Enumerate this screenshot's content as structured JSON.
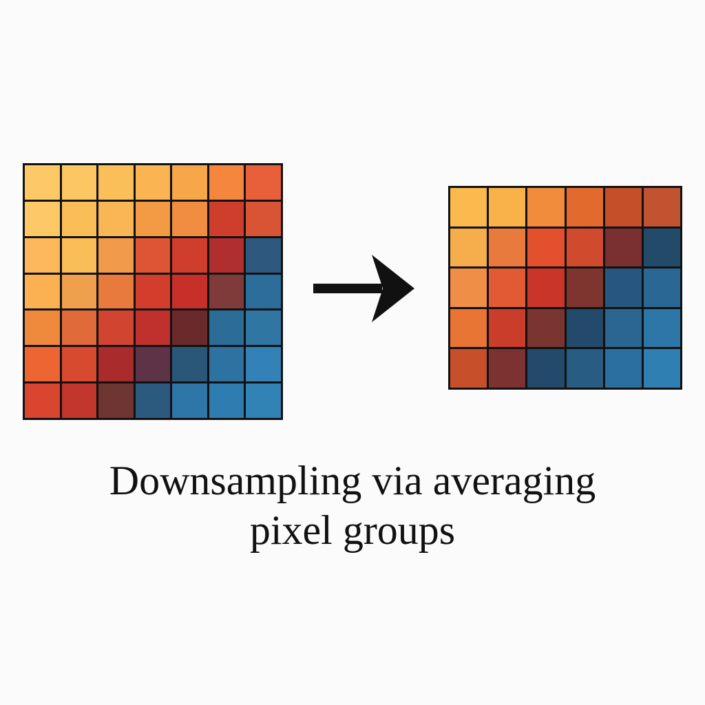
{
  "caption": {
    "line1": "Downsampling via averaging",
    "line2": "pixel groups"
  },
  "arrow_icon": "right-arrow-icon",
  "source_grid": {
    "rows": 7,
    "cols": 7,
    "colors": [
      [
        "#fdc866",
        "#fcc662",
        "#fbbf5a",
        "#fab452",
        "#f7a64a",
        "#f4863d",
        "#e8603a"
      ],
      [
        "#fdc966",
        "#fbbd58",
        "#f9b654",
        "#f39a45",
        "#f08d40",
        "#cf3e2c",
        "#d85434"
      ],
      [
        "#fcb85a",
        "#fbbd58",
        "#f19a4c",
        "#dd5532",
        "#d13d2c",
        "#b02f2e",
        "#2e587d"
      ],
      [
        "#fbb052",
        "#eea04c",
        "#e87a3e",
        "#d33e2c",
        "#c63029",
        "#7f3a3a",
        "#2d6d99"
      ],
      [
        "#ef8a3d",
        "#e06a3a",
        "#d1442f",
        "#c0312d",
        "#6a2a2c",
        "#2c6d98",
        "#2f76a3"
      ],
      [
        "#ed6532",
        "#d84a30",
        "#a92b2b",
        "#5e3347",
        "#2a5678",
        "#2d72a0",
        "#3282b7"
      ],
      [
        "#d9452f",
        "#c2362d",
        "#6e3533",
        "#2c5a7f",
        "#2e76a8",
        "#2f7cb0",
        "#3182b5"
      ]
    ]
  },
  "result_grid": {
    "rows": 5,
    "cols": 6,
    "colors": [
      [
        "#fbb94e",
        "#f9b24a",
        "#f18c3c",
        "#e26a2d",
        "#c54f29",
        "#c25330"
      ],
      [
        "#f6ad4c",
        "#e97a3d",
        "#e3502e",
        "#d04a2d",
        "#7a2f30",
        "#224b6a"
      ],
      [
        "#ef8e46",
        "#e25a33",
        "#c93528",
        "#7e3530",
        "#275780",
        "#2a6792"
      ],
      [
        "#e97534",
        "#ca3d2b",
        "#7b3530",
        "#234a6a",
        "#2a6690",
        "#2c76a8"
      ],
      [
        "#c7502b",
        "#7c3230",
        "#234a6a",
        "#285c83",
        "#2a6fa0",
        "#2f7fb3"
      ]
    ]
  }
}
